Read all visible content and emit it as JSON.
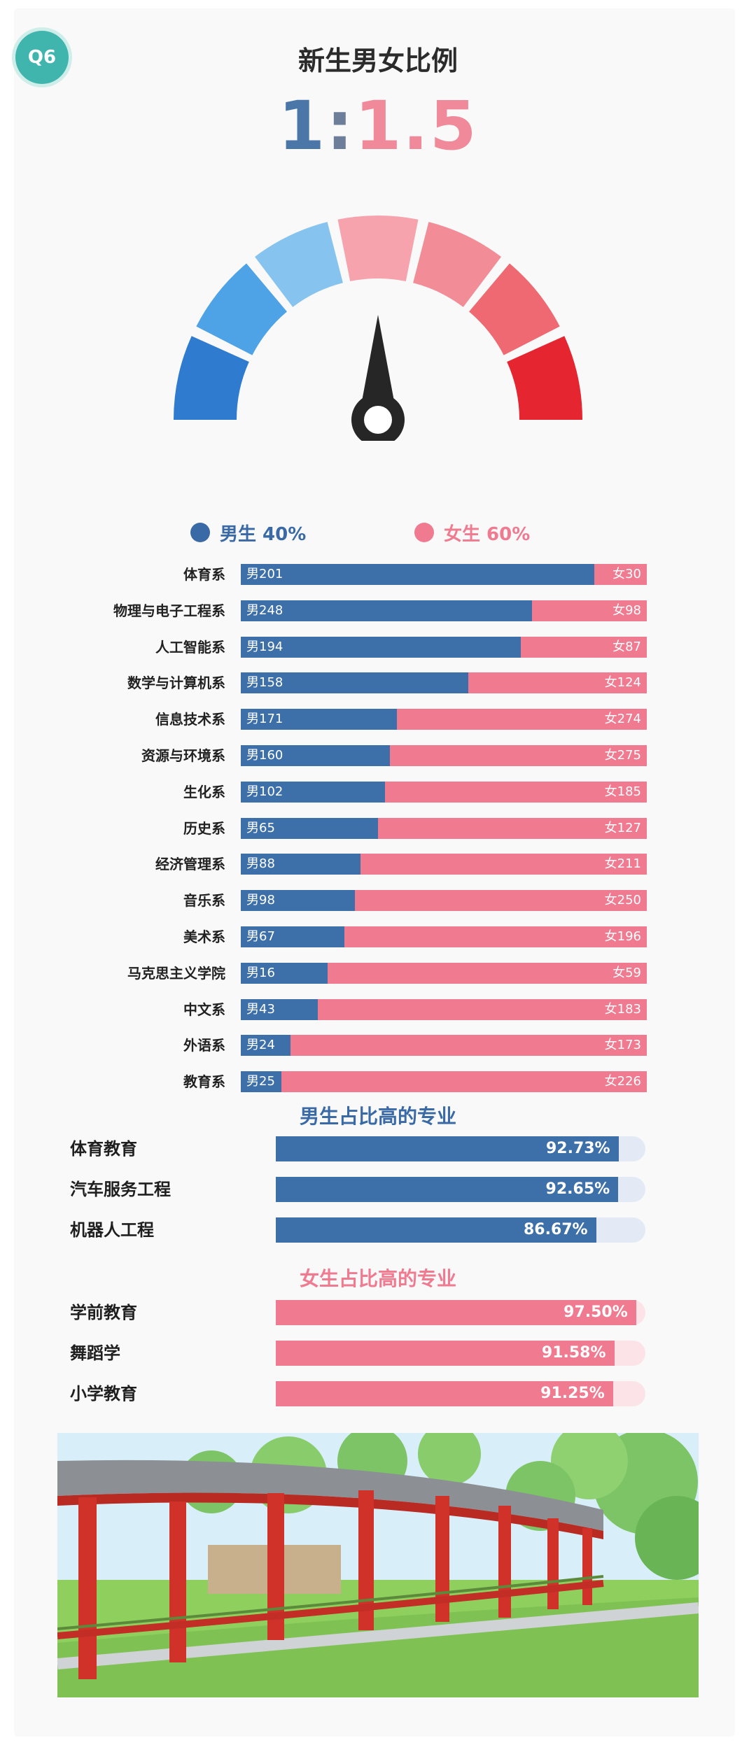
{
  "badge": "Q6",
  "title": "新生男女比例",
  "ratio": {
    "male": "1",
    "colon": ":",
    "female": "1.5"
  },
  "legend": {
    "male": "男生 40%",
    "female": "女生 60%"
  },
  "colors": {
    "male": "#3d6fa8",
    "female": "#f07a90"
  },
  "gauge": {
    "segment_colors": [
      "#2f7bd0",
      "#4ea3e6",
      "#86c4ef",
      "#f6a3ae",
      "#f28d97",
      "#ee6972",
      "#e5252f"
    ],
    "needle_value": 0.5
  },
  "chart_data": [
    {
      "type": "bar",
      "stacked": true,
      "orientation": "horizontal",
      "categories": [
        "体育系",
        "物理与电子工程系",
        "人工智能系",
        "数学与计算机系",
        "信息技术系",
        "资源与环境系",
        "生化系",
        "历史系",
        "经济管理系",
        "音乐系",
        "美术系",
        "马克思主义学院",
        "中文系",
        "外语系",
        "教育系"
      ],
      "series": [
        {
          "name": "男",
          "values": [
            201,
            248,
            194,
            158,
            171,
            160,
            102,
            65,
            88,
            98,
            67,
            16,
            43,
            24,
            25
          ]
        },
        {
          "name": "女",
          "values": [
            30,
            98,
            87,
            124,
            274,
            275,
            185,
            127,
            211,
            250,
            196,
            59,
            183,
            173,
            226
          ]
        }
      ]
    },
    {
      "type": "bar",
      "orientation": "horizontal",
      "title": "男生占比高的专业",
      "categories": [
        "体育教育",
        "汽车服务工程",
        "机器人工程"
      ],
      "values": [
        92.73,
        92.65,
        86.67
      ],
      "labels": [
        "92.73%",
        "92.65%",
        "86.67%"
      ]
    },
    {
      "type": "bar",
      "orientation": "horizontal",
      "title": "女生占比高的专业",
      "categories": [
        "学前教育",
        "舞蹈学",
        "小学教育"
      ],
      "values": [
        97.5,
        91.58,
        91.25
      ],
      "labels": [
        "97.50%",
        "91.58%",
        "91.25%"
      ]
    }
  ]
}
